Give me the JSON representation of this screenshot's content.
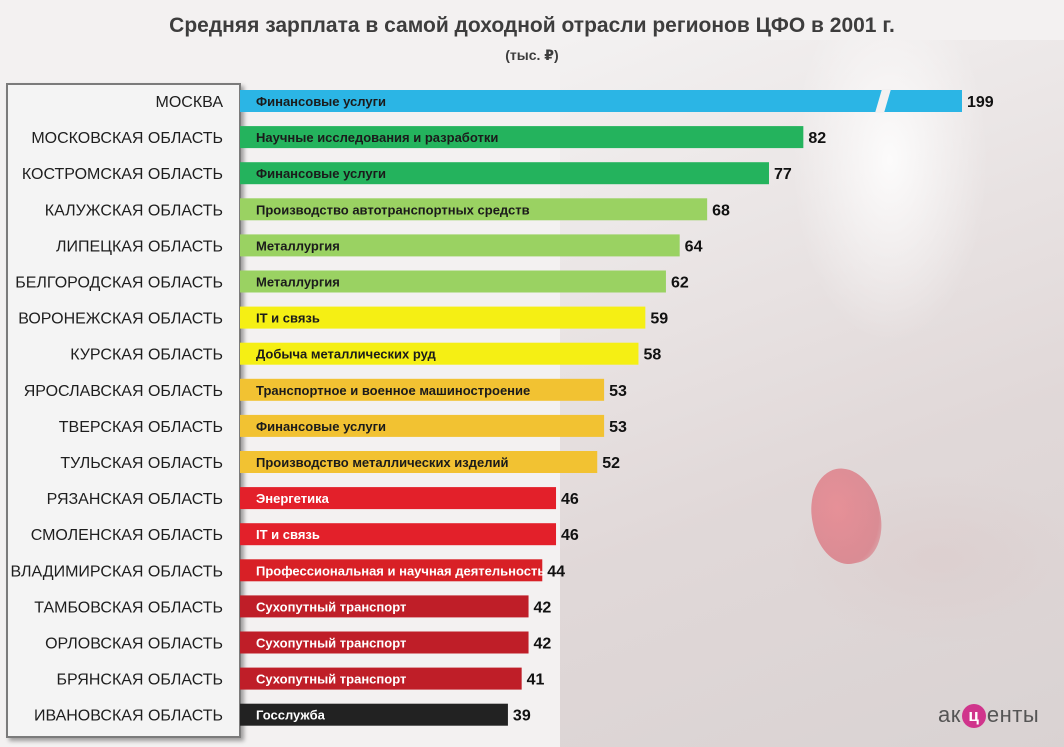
{
  "chart_data": {
    "type": "bar",
    "orientation": "horizontal",
    "title": "Средняя зарплата в самой доходной отрасли регионов ЦФО в 2001 г.",
    "subtitle": "(тыс. ₽)",
    "categories": [
      "МОСКВА",
      "МОСКОВСКАЯ ОБЛАСТЬ",
      "КОСТРОМСКАЯ ОБЛАСТЬ",
      "КАЛУЖСКАЯ ОБЛАСТЬ",
      "ЛИПЕЦКАЯ ОБЛАСТЬ",
      "БЕЛГОРОДСКАЯ ОБЛАСТЬ",
      "ВОРОНЕЖСКАЯ ОБЛАСТЬ",
      "КУРСКАЯ ОБЛАСТЬ",
      "ЯРОСЛАВСКАЯ ОБЛАСТЬ",
      "ТВЕРСКАЯ ОБЛАСТЬ",
      "ТУЛЬСКАЯ ОБЛАСТЬ",
      "РЯЗАНСКАЯ ОБЛАСТЬ",
      "СМОЛЕНСКАЯ ОБЛАСТЬ",
      "ВЛАДИМИРСКАЯ ОБЛАСТЬ",
      "ТАМБОВСКАЯ ОБЛАСТЬ",
      "ОРЛОВСКАЯ ОБЛАСТЬ",
      "БРЯНСКАЯ ОБЛАСТЬ",
      "ИВАНОВСКАЯ ОБЛАСТЬ"
    ],
    "values": [
      199,
      82,
      77,
      68,
      64,
      62,
      59,
      58,
      53,
      53,
      52,
      46,
      46,
      44,
      42,
      42,
      41,
      39
    ],
    "bar_labels": [
      "Финансовые услуги",
      "Научные исследования и разработки",
      "Финансовые услуги",
      "Производство автотранспортных средств",
      "Металлургия",
      "Металлургия",
      "IT и связь",
      "Добыча металлических руд",
      "Транспортное и военное машиностроение",
      "Финансовые услуги",
      "Производство металлических изделий",
      "Энергетика",
      "IT и связь",
      "Профессиональная и научная деятельность",
      "Сухопутный транспорт",
      "Сухопутный транспорт",
      "Сухопутный транспорт",
      "Госслужба"
    ],
    "colors": [
      "#2bb5e5",
      "#24b35d",
      "#24b35d",
      "#9ad262",
      "#9ad262",
      "#9ad262",
      "#f5ef14",
      "#f5ef14",
      "#f2c232",
      "#f2c232",
      "#f2c232",
      "#e3202a",
      "#e3202a",
      "#d82026",
      "#bf1e28",
      "#bf1e28",
      "#bf1e28",
      "#222222"
    ],
    "axis_break": true,
    "xlim": [
      0,
      95
    ],
    "grid": false,
    "legend": "none"
  },
  "brand": {
    "logo_left": "ак",
    "logo_mid": "ц",
    "logo_right": "енты",
    "accent": "#d0358c"
  }
}
